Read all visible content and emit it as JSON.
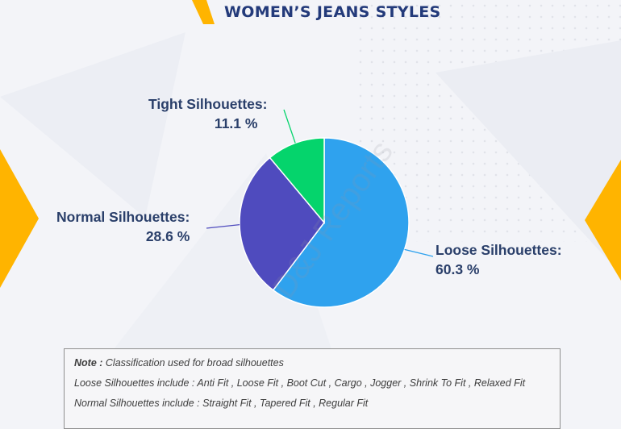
{
  "header": {
    "title": "WOMEN’S JEANS STYLES"
  },
  "colors": {
    "accent": "#ffb400",
    "title": "#233a7a",
    "loose": "#2fa2ee",
    "normal": "#4f4bbe",
    "tight": "#05d46c"
  },
  "chart_data": {
    "type": "pie",
    "slices": [
      {
        "label": "Loose Silhouettes:",
        "pct_label": "60.3 %",
        "value": 60.3,
        "color": "#2fa2ee"
      },
      {
        "label": "Normal Silhouettes:",
        "pct_label": "28.6 %",
        "value": 28.6,
        "color": "#4f4bbe"
      },
      {
        "label": "Tight Silhouettes:",
        "pct_label": "11.1 %",
        "value": 11.1,
        "color": "#05d46c"
      }
    ]
  },
  "watermark": "D&J Reports",
  "note": {
    "line1_prefix": "Note :",
    "line1_text": " Classification used for broad silhouettes",
    "line2": "Loose Silhouettes include : Anti Fit , Loose Fit , Boot Cut , Cargo , Jogger , Shrink To Fit , Relaxed Fit",
    "line3": "Normal Silhouettes include : Straight Fit , Tapered Fit , Regular Fit"
  }
}
